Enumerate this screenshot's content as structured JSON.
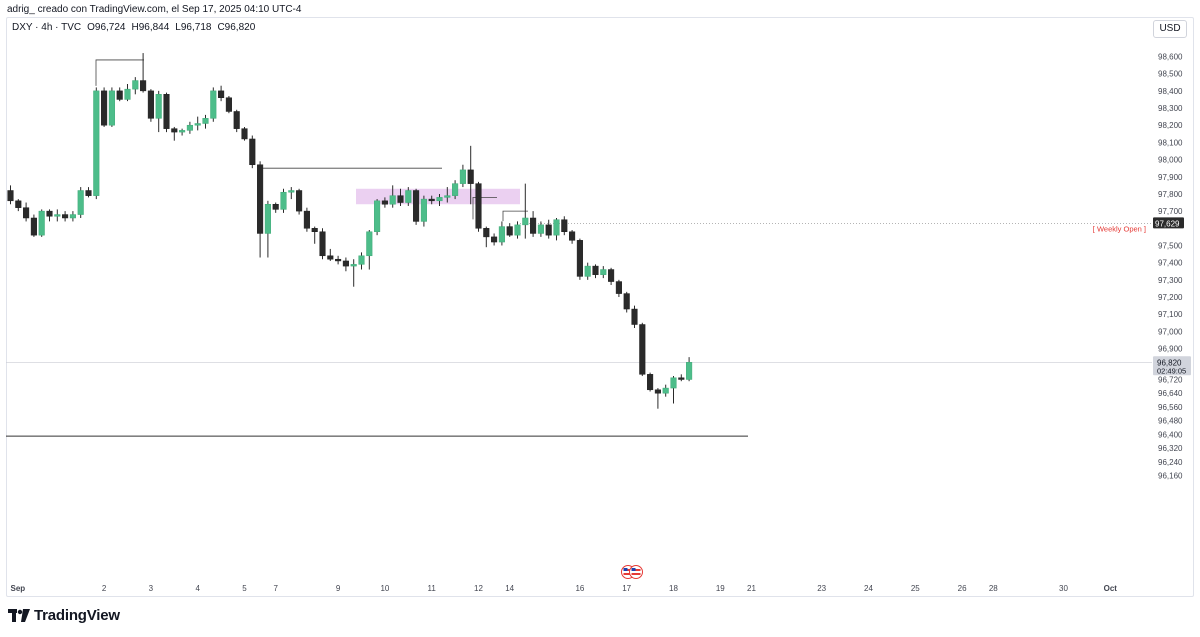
{
  "header": {
    "attribution": "adrig_ creado con TradingView.com, el Sep 17, 2025 04:10 UTC-4",
    "symbol": "DXY · 4h · TVC",
    "open": "O96,724",
    "high": "H96,844",
    "low": "L96,718",
    "close": "C96,820",
    "currency": "USD"
  },
  "footer": {
    "brand": "TradingView",
    "logo_icon": "tradingview-logo-icon"
  },
  "colors": {
    "up": "#4dbd8a",
    "down": "#2a2a2a",
    "zone": "#e8c8ef",
    "annotation_text": "#e53935",
    "axis_text": "#434651"
  },
  "chart_data": {
    "type": "candlestick",
    "symbol": "DXY",
    "timeframe": "4h",
    "ylim": [
      96.11,
      98.68
    ],
    "y_ticks": [
      98.6,
      98.5,
      98.4,
      98.3,
      98.2,
      98.1,
      98.0,
      97.9,
      97.8,
      97.7,
      97.5,
      97.4,
      97.3,
      97.2,
      97.1,
      97.0,
      96.9,
      96.72,
      96.64,
      96.56,
      96.48,
      96.4,
      96.32,
      96.24,
      96.16
    ],
    "y_tick_labels": [
      "98,600",
      "98,500",
      "98,400",
      "98,300",
      "98,200",
      "98,100",
      "98,000",
      "97,900",
      "97,800",
      "97,700",
      "97,500",
      "97,400",
      "97,300",
      "97,200",
      "97,100",
      "97,000",
      "96,900",
      "96,720",
      "96,640",
      "96,560",
      "96,480",
      "96,400",
      "96,320",
      "96,240",
      "96,160"
    ],
    "x_labels": [
      {
        "i": 0,
        "label": "Sep"
      },
      {
        "i": 12,
        "label": "2"
      },
      {
        "i": 18,
        "label": "3"
      },
      {
        "i": 24,
        "label": "4"
      },
      {
        "i": 30,
        "label": "5"
      },
      {
        "i": 34,
        "label": "7"
      },
      {
        "i": 42,
        "label": "9"
      },
      {
        "i": 48,
        "label": "10"
      },
      {
        "i": 54,
        "label": "11"
      },
      {
        "i": 60,
        "label": "12"
      },
      {
        "i": 64,
        "label": "14"
      },
      {
        "i": 73,
        "label": "16"
      },
      {
        "i": 79,
        "label": "17"
      },
      {
        "i": 85,
        "label": "18"
      },
      {
        "i": 91,
        "label": "19"
      },
      {
        "i": 95,
        "label": "21"
      },
      {
        "i": 104,
        "label": "23"
      },
      {
        "i": 110,
        "label": "24"
      },
      {
        "i": 116,
        "label": "25"
      },
      {
        "i": 122,
        "label": "26"
      },
      {
        "i": 126,
        "label": "28"
      },
      {
        "i": 135,
        "label": "30"
      },
      {
        "i": 141,
        "label": "Oct"
      }
    ],
    "candles": [
      [
        97.82,
        97.85,
        97.74,
        97.76
      ],
      [
        97.76,
        97.77,
        97.7,
        97.72
      ],
      [
        97.72,
        97.75,
        97.64,
        97.66
      ],
      [
        97.66,
        97.68,
        97.55,
        97.56
      ],
      [
        97.56,
        97.71,
        97.55,
        97.7
      ],
      [
        97.7,
        97.71,
        97.64,
        97.67
      ],
      [
        97.67,
        97.71,
        97.64,
        97.68
      ],
      [
        97.68,
        97.7,
        97.64,
        97.66
      ],
      [
        97.66,
        97.7,
        97.64,
        97.68
      ],
      [
        97.68,
        97.84,
        97.66,
        97.82
      ],
      [
        97.82,
        97.84,
        97.78,
        97.79
      ],
      [
        97.79,
        98.42,
        97.77,
        98.4
      ],
      [
        98.4,
        98.42,
        98.19,
        98.2
      ],
      [
        98.2,
        98.42,
        98.19,
        98.4
      ],
      [
        98.4,
        98.42,
        98.34,
        98.35
      ],
      [
        98.35,
        98.44,
        98.34,
        98.41
      ],
      [
        98.41,
        98.48,
        98.38,
        98.46
      ],
      [
        98.46,
        98.62,
        98.39,
        98.4
      ],
      [
        98.4,
        98.41,
        98.22,
        98.24
      ],
      [
        98.24,
        98.4,
        98.16,
        98.38
      ],
      [
        98.38,
        98.39,
        98.16,
        98.18
      ],
      [
        98.18,
        98.19,
        98.11,
        98.16
      ],
      [
        98.16,
        98.18,
        98.14,
        98.17
      ],
      [
        98.17,
        98.22,
        98.15,
        98.2
      ],
      [
        98.2,
        98.25,
        98.17,
        98.21
      ],
      [
        98.21,
        98.26,
        98.18,
        98.24
      ],
      [
        98.24,
        98.42,
        98.22,
        98.4
      ],
      [
        98.4,
        98.43,
        98.34,
        98.36
      ],
      [
        98.36,
        98.37,
        98.27,
        98.28
      ],
      [
        98.28,
        98.29,
        98.16,
        98.18
      ],
      [
        98.18,
        98.19,
        98.11,
        98.12
      ],
      [
        98.12,
        98.14,
        97.95,
        97.97
      ],
      [
        97.97,
        97.99,
        97.43,
        97.57
      ],
      [
        97.57,
        97.76,
        97.43,
        97.74
      ],
      [
        97.74,
        97.75,
        97.69,
        97.71
      ],
      [
        97.71,
        97.83,
        97.69,
        97.81
      ],
      [
        97.81,
        97.84,
        97.77,
        97.82
      ],
      [
        97.82,
        97.83,
        97.68,
        97.7
      ],
      [
        97.7,
        97.72,
        97.58,
        97.6
      ],
      [
        97.6,
        97.61,
        97.51,
        97.58
      ],
      [
        97.58,
        97.6,
        97.42,
        97.44
      ],
      [
        97.44,
        97.48,
        97.41,
        97.42
      ],
      [
        97.42,
        97.44,
        97.39,
        97.41
      ],
      [
        97.41,
        97.43,
        97.35,
        97.38
      ],
      [
        97.38,
        97.42,
        97.26,
        97.39
      ],
      [
        97.39,
        97.46,
        97.36,
        97.44
      ],
      [
        97.44,
        97.59,
        97.36,
        97.58
      ],
      [
        97.58,
        97.77,
        97.56,
        97.76
      ],
      [
        97.76,
        97.78,
        97.72,
        97.74
      ],
      [
        97.74,
        97.85,
        97.72,
        97.79
      ],
      [
        97.79,
        97.83,
        97.73,
        97.75
      ],
      [
        97.75,
        97.84,
        97.73,
        97.82
      ],
      [
        97.82,
        97.83,
        97.62,
        97.64
      ],
      [
        97.64,
        97.79,
        97.61,
        97.77
      ],
      [
        97.77,
        97.79,
        97.74,
        97.76
      ],
      [
        97.76,
        97.8,
        97.73,
        97.78
      ],
      [
        97.78,
        97.84,
        97.75,
        97.79
      ],
      [
        97.79,
        97.88,
        97.77,
        97.86
      ],
      [
        97.86,
        97.97,
        97.84,
        97.94
      ],
      [
        97.94,
        98.08,
        97.74,
        97.86
      ],
      [
        97.86,
        97.87,
        97.58,
        97.6
      ],
      [
        97.6,
        97.61,
        97.49,
        97.55
      ],
      [
        97.55,
        97.57,
        97.5,
        97.52
      ],
      [
        97.52,
        97.64,
        97.5,
        97.61
      ],
      [
        97.61,
        97.63,
        97.55,
        97.56
      ],
      [
        97.56,
        97.64,
        97.54,
        97.62
      ],
      [
        97.62,
        97.86,
        97.54,
        97.66
      ],
      [
        97.66,
        97.7,
        97.55,
        97.57
      ],
      [
        97.57,
        97.64,
        97.55,
        97.62
      ],
      [
        97.62,
        97.65,
        97.54,
        97.56
      ],
      [
        97.56,
        97.66,
        97.53,
        97.65
      ],
      [
        97.65,
        97.67,
        97.56,
        97.58
      ],
      [
        97.58,
        97.59,
        97.51,
        97.53
      ],
      [
        97.53,
        97.54,
        97.3,
        97.32
      ],
      [
        97.32,
        97.4,
        97.3,
        97.38
      ],
      [
        97.38,
        97.39,
        97.31,
        97.33
      ],
      [
        97.33,
        97.38,
        97.31,
        97.36
      ],
      [
        97.36,
        97.37,
        97.27,
        97.29
      ],
      [
        97.29,
        97.3,
        97.2,
        97.22
      ],
      [
        97.22,
        97.23,
        97.11,
        97.13
      ],
      [
        97.13,
        97.15,
        97.02,
        97.04
      ],
      [
        97.04,
        97.05,
        96.74,
        96.75
      ],
      [
        96.75,
        96.76,
        96.65,
        96.66
      ],
      [
        96.66,
        96.67,
        96.55,
        96.64
      ],
      [
        96.64,
        96.69,
        96.62,
        96.67
      ],
      [
        96.67,
        96.74,
        96.58,
        96.73
      ],
      [
        96.73,
        96.75,
        96.71,
        96.72
      ],
      [
        96.72,
        96.85,
        96.71,
        96.82
      ]
    ],
    "levels": [
      {
        "name": "weekly-open",
        "label": "[ Weekly Open ]",
        "value": 97.629,
        "price_label": "97,629",
        "style": "dotted"
      },
      {
        "name": "last-price",
        "value": 96.82,
        "price_label": "96,820",
        "countdown": "02:49:05",
        "style": "thin"
      },
      {
        "name": "support-line",
        "value": 96.39,
        "style": "solid"
      }
    ],
    "supply_zone": {
      "y_low": 97.74,
      "y_high": 97.83
    },
    "structure_lines": [
      {
        "kind": "high-bracket",
        "value": 98.58
      },
      {
        "kind": "range-high",
        "value": 97.95
      },
      {
        "kind": "mini-high-1",
        "value": 97.78
      },
      {
        "kind": "mini-high-2",
        "value": 97.7
      }
    ],
    "grid": false
  }
}
